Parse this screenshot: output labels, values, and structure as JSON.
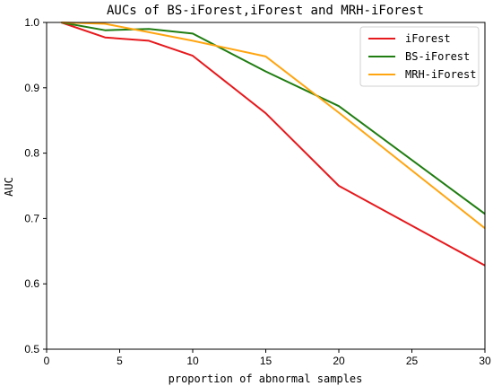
{
  "chart_data": {
    "type": "line",
    "title": "AUCs of BS-iForest,iForest and MRH-iForest",
    "xlabel": "proportion of abnormal samples",
    "ylabel": "AUC",
    "xlim": [
      0,
      30
    ],
    "ylim": [
      0.5,
      1.0
    ],
    "xticks": [
      "0",
      "5",
      "10",
      "15",
      "20",
      "25",
      "30"
    ],
    "yticks": [
      "0.5",
      "0.6",
      "0.7",
      "0.8",
      "0.9",
      "1.0"
    ],
    "legend_position": "top-right",
    "grid": false,
    "series": [
      {
        "name": "iForest",
        "color": "#e6191d",
        "x": [
          1,
          4,
          7,
          10,
          15,
          20,
          30
        ],
        "y": [
          1.0,
          0.977,
          0.972,
          0.949,
          0.861,
          0.75,
          0.628
        ]
      },
      {
        "name": "BS-iForest",
        "color": "#1f7d11",
        "x": [
          1,
          4,
          7,
          10,
          15,
          20,
          30
        ],
        "y": [
          1.0,
          0.988,
          0.99,
          0.983,
          0.925,
          0.872,
          0.707
        ]
      },
      {
        "name": "MRH-iForest",
        "color": "#ffa510",
        "x": [
          1,
          4,
          7,
          10,
          15,
          20,
          30
        ],
        "y": [
          1.0,
          0.998,
          0.985,
          0.972,
          0.948,
          0.862,
          0.685
        ]
      }
    ]
  }
}
